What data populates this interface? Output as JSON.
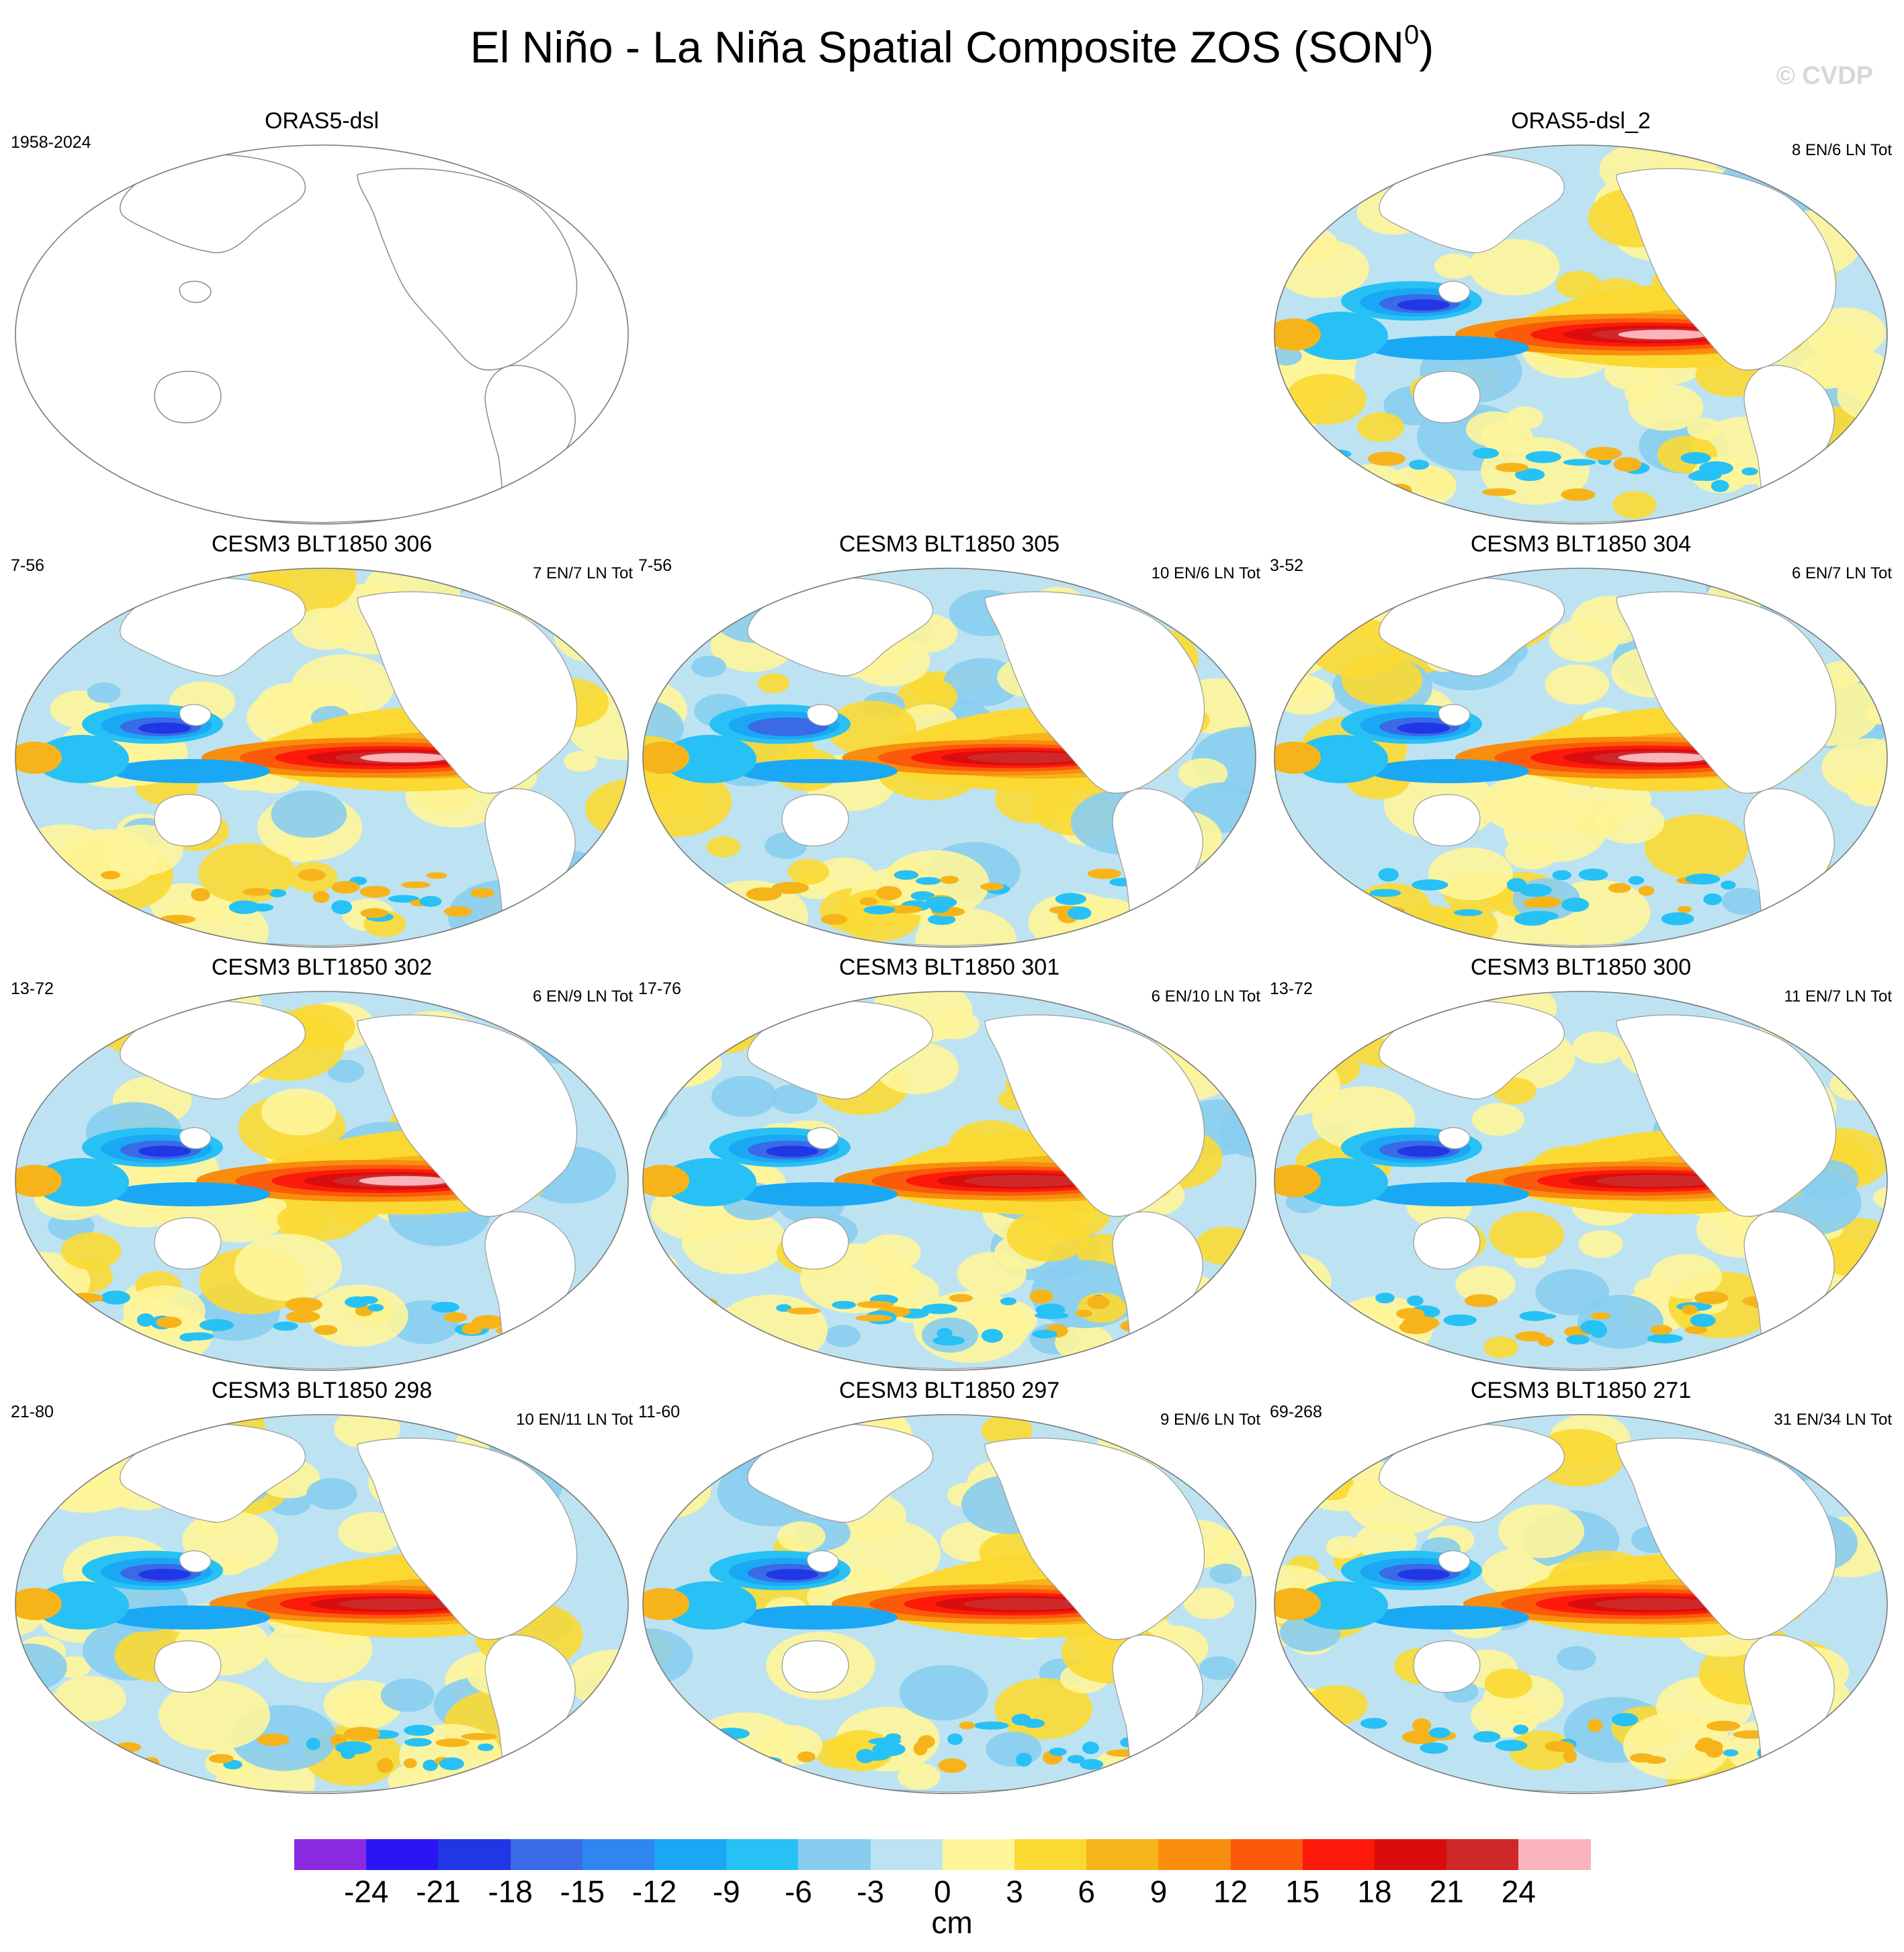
{
  "title": {
    "main": "El Niño - La Niña Spatial Composite ZOS (SON",
    "sup": "0",
    "close": ")"
  },
  "watermark": "© CVDP",
  "panels": [
    {
      "id": "orasdsl",
      "title": "ORAS5-dsl",
      "years": "1958-2024",
      "counts": "",
      "has_data": false,
      "strength": 0.0
    },
    {
      "id": "oras2",
      "title": "ORAS5-dsl_2",
      "years": "",
      "counts": "8 EN/6 LN Tot",
      "has_data": true,
      "strength": 1.0
    },
    {
      "id": "m306",
      "title": "CESM3 BLT1850 306",
      "years": "7-56",
      "counts": "7 EN/7 LN Tot",
      "has_data": true,
      "strength": 0.9
    },
    {
      "id": "m305",
      "title": "CESM3 BLT1850 305",
      "years": "7-56",
      "counts": "10 EN/6 LN Tot",
      "has_data": true,
      "strength": 0.65
    },
    {
      "id": "m304",
      "title": "CESM3 BLT1850 304",
      "years": "3-52",
      "counts": "6 EN/7 LN Tot",
      "has_data": true,
      "strength": 1.0
    },
    {
      "id": "m302",
      "title": "CESM3 BLT1850 302",
      "years": "13-72",
      "counts": "6 EN/9 LN Tot",
      "has_data": true,
      "strength": 1.0
    },
    {
      "id": "m301",
      "title": "CESM3 BLT1850 301",
      "years": "17-76",
      "counts": "6 EN/10 LN Tot",
      "has_data": true,
      "strength": 0.8
    },
    {
      "id": "m300",
      "title": "CESM3 BLT1850 300",
      "years": "13-72",
      "counts": "11 EN/7 LN Tot",
      "has_data": true,
      "strength": 0.8
    },
    {
      "id": "m298",
      "title": "CESM3 BLT1850 298",
      "years": "21-80",
      "counts": "10 EN/11 LN Tot",
      "has_data": true,
      "strength": 0.75
    },
    {
      "id": "m297",
      "title": "CESM3 BLT1850 297",
      "years": "11-60",
      "counts": "9 EN/6 LN Tot",
      "has_data": true,
      "strength": 0.85
    },
    {
      "id": "m271",
      "title": "CESM3 BLT1850 271",
      "years": "69-268",
      "counts": "31 EN/34 LN Tot",
      "has_data": true,
      "strength": 0.85
    }
  ],
  "colorbar": {
    "colors": [
      "#8a2be2",
      "#2a16f5",
      "#2137e6",
      "#3a6ae6",
      "#2f86f0",
      "#1aa8f5",
      "#27c1f5",
      "#88cdf0",
      "#bde3f2",
      "#fef59a",
      "#fbd932",
      "#f6b41a",
      "#f88d0e",
      "#fb5a0a",
      "#fd1a0a",
      "#d90d0d",
      "#cf2828",
      "#fcb4bc"
    ],
    "labels": [
      "-24",
      "-21",
      "-18",
      "-15",
      "-12",
      "-9",
      "-6",
      "-3",
      "0",
      "3",
      "6",
      "9",
      "12",
      "15",
      "18",
      "21",
      "24"
    ],
    "units": "cm"
  }
}
